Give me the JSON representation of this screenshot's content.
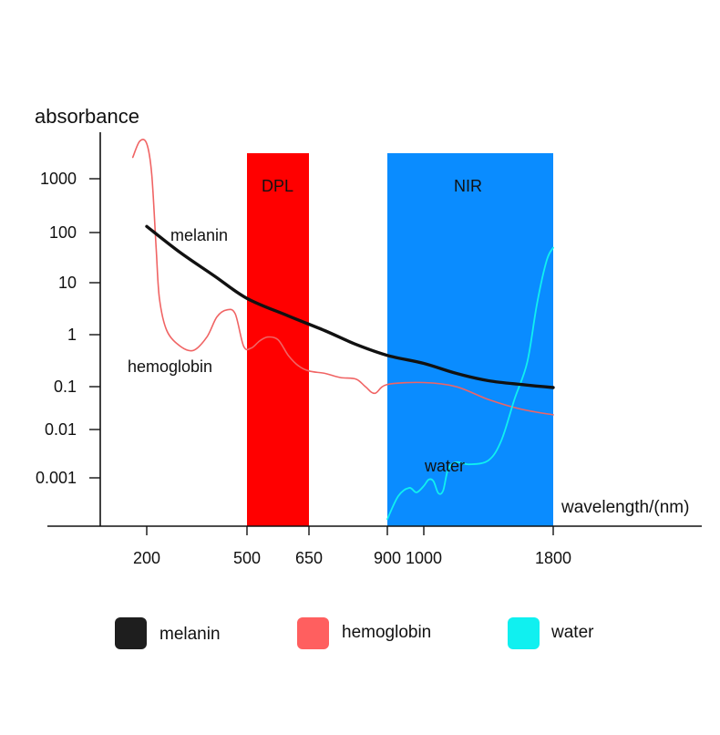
{
  "chart_data": {
    "type": "line",
    "title": "",
    "ylabel": "absorbance",
    "xlabel": "wavelength/(nm)",
    "yscale": "log",
    "xscale": "piecewise",
    "y_ticks": [
      {
        "label": "1000",
        "value": 1000
      },
      {
        "label": "100",
        "value": 100
      },
      {
        "label": "10",
        "value": 10
      },
      {
        "label": "1",
        "value": 1
      },
      {
        "label": "0.1",
        "value": 0.1
      },
      {
        "label": "0.01",
        "value": 0.01
      },
      {
        "label": "0.001",
        "value": 0.001
      }
    ],
    "x_ticks": [
      {
        "label": "200",
        "value": 200
      },
      {
        "label": "500",
        "value": 500
      },
      {
        "label": "650",
        "value": 650
      },
      {
        "label": "900",
        "value": 900
      },
      {
        "label": "1000",
        "value": 1000
      },
      {
        "label": "1800",
        "value": 1800
      }
    ],
    "bands": [
      {
        "name": "DPL",
        "label": "DPL",
        "from": 500,
        "to": 650,
        "color": "#ff0000"
      },
      {
        "name": "NIR",
        "label": "NIR",
        "from": 900,
        "to": 1800,
        "color": "#0a8cff"
      }
    ],
    "series": [
      {
        "name": "melanin",
        "label": "melanin",
        "color": "#111111",
        "x": [
          200,
          300,
          400,
          500,
          600,
          700,
          800,
          900,
          1000,
          1200,
          1400,
          1600,
          1800
        ],
        "y": [
          130,
          40,
          14,
          5,
          2.3,
          1.2,
          0.65,
          0.4,
          0.28,
          0.18,
          0.13,
          0.11,
          0.095
        ]
      },
      {
        "name": "hemoglobin",
        "label": "hemoglobin",
        "color": "#f06464",
        "x": [
          170,
          185,
          200,
          215,
          228,
          238,
          260,
          300,
          340,
          380,
          410,
          440,
          465,
          490,
          510,
          530,
          550,
          575,
          600,
          625,
          650,
          700,
          750,
          800,
          830,
          860,
          900,
          1000,
          1200,
          1400,
          1600,
          1800
        ],
        "y": [
          2500,
          5000,
          4500,
          1200,
          50,
          5,
          1.2,
          0.6,
          0.5,
          0.9,
          2.2,
          3,
          2.5,
          0.6,
          0.55,
          0.75,
          0.9,
          0.8,
          0.4,
          0.25,
          0.2,
          0.18,
          0.15,
          0.14,
          0.1,
          0.07,
          0.11,
          0.12,
          0.1,
          0.05,
          0.03,
          0.022
        ]
      },
      {
        "name": "water",
        "label": "water",
        "color": "#10f0f0",
        "x": [
          900,
          930,
          960,
          980,
          1000,
          1030,
          1060,
          1090,
          1120,
          1150,
          1200,
          1280,
          1400,
          1480,
          1560,
          1640,
          1700,
          1760,
          1800
        ],
        "y": [
          0.00014,
          0.00042,
          0.00062,
          0.0005,
          0.00068,
          0.00092,
          0.00085,
          0.00048,
          0.00055,
          0.0015,
          0.0021,
          0.0019,
          0.0023,
          0.006,
          0.05,
          0.3,
          4,
          28,
          50
        ]
      }
    ],
    "legend": {
      "position": "bottom",
      "entries": [
        {
          "label": "melanin",
          "color": "#1e1e1e"
        },
        {
          "label": "hemoglobin",
          "color": "#ff5f5f"
        },
        {
          "label": "water",
          "color": "#10f0f0"
        }
      ]
    }
  }
}
